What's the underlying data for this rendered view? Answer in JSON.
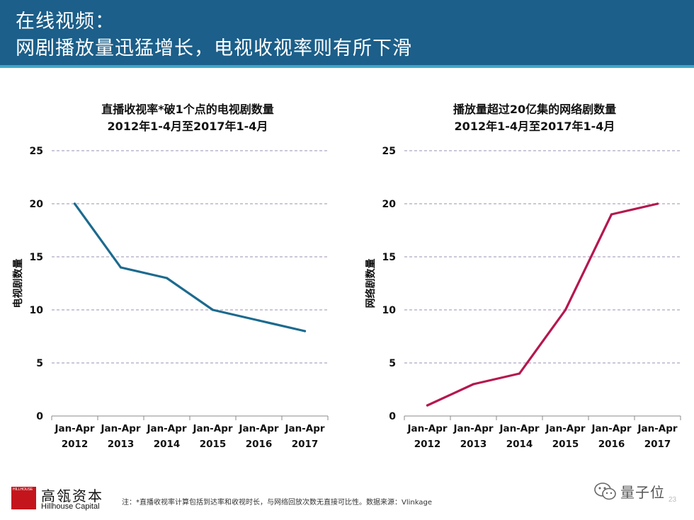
{
  "header": {
    "title_line1": "在线视频：",
    "title_line2": "网剧播放量迅猛增长，电视收视率则有所下滑"
  },
  "colors": {
    "header_bg": "#1b5f8a",
    "header_stripe": "#3fa7c9",
    "series_left": "#1c6a8e",
    "series_right": "#b5174f"
  },
  "chart_data": [
    {
      "type": "line",
      "title": "直播收视率*破1个点的电视剧数量",
      "subtitle": "2012年1-4月至2017年1-4月",
      "ylabel": "电视剧数量",
      "xlabel": "",
      "ylim": [
        0,
        25
      ],
      "yticks": [
        0,
        5,
        10,
        15,
        20,
        25
      ],
      "grid": true,
      "categories": [
        [
          "Jan-Apr",
          "2012"
        ],
        [
          "Jan-Apr",
          "2013"
        ],
        [
          "Jan-Apr",
          "2014"
        ],
        [
          "Jan-Apr",
          "2015"
        ],
        [
          "Jan-Apr",
          "2016"
        ],
        [
          "Jan-Apr",
          "2017"
        ]
      ],
      "series": [
        {
          "values": [
            20,
            14,
            13,
            10,
            9,
            8
          ]
        }
      ]
    },
    {
      "type": "line",
      "title": "播放量超过20亿集的网络剧数量",
      "subtitle": "2012年1-4月至2017年1-4月",
      "ylabel": "网络剧数量",
      "xlabel": "",
      "ylim": [
        0,
        25
      ],
      "yticks": [
        0,
        5,
        10,
        15,
        20,
        25
      ],
      "grid": true,
      "categories": [
        [
          "Jan-Apr",
          "2012"
        ],
        [
          "Jan-Apr",
          "2013"
        ],
        [
          "Jan-Apr",
          "2014"
        ],
        [
          "Jan-Apr",
          "2015"
        ],
        [
          "Jan-Apr",
          "2016"
        ],
        [
          "Jan-Apr",
          "2017"
        ]
      ],
      "series": [
        {
          "values": [
            1,
            3,
            4,
            10,
            19,
            20
          ]
        }
      ]
    }
  ],
  "footer": {
    "logo_box_text": "HILLHOUSE",
    "brand_cn": "高瓴资本",
    "brand_en": "Hillhouse Capital",
    "note": "注：*直播收视率计算包括到达率和收视时长，与网络回放次数无直接可比性。数据来源：Vlinkage",
    "watermark": "量子位",
    "watermark_icon": "wechat-icon",
    "page_number": "23"
  }
}
